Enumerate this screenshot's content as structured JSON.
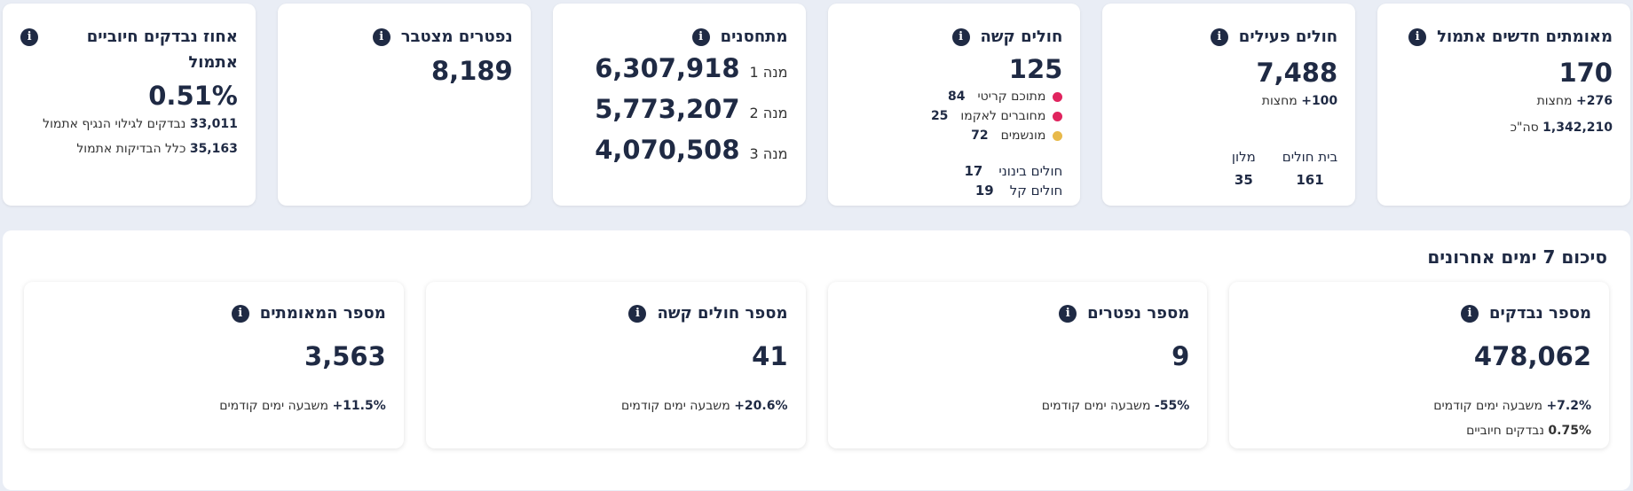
{
  "top_cards": {
    "confirmed": {
      "title": "מאומתים חדשים אתמול",
      "value": "170",
      "midnight_value": "276+",
      "midnight_label": "מחצות",
      "total_value": "1,342,210",
      "total_label": "סה\"כ"
    },
    "active": {
      "title": "חולים פעילים",
      "value": "7,488",
      "midnight_value": "100+",
      "midnight_label": "מחצות",
      "hospital_label": "בית חולים",
      "hospital_value": "161",
      "hotel_label": "מלון",
      "hotel_value": "35"
    },
    "severe": {
      "title": "חולים קשה",
      "value": "125",
      "critical_label": "מתוכם קריטי",
      "critical_value": "84",
      "ecmo_label": "מחוברים לאקמו",
      "ecmo_value": "25",
      "ventilated_label": "מונשמים",
      "ventilated_value": "72",
      "moderate_label": "חולים בינוני",
      "moderate_value": "17",
      "mild_label": "חולים קל",
      "mild_value": "19",
      "critical_color": "#e0245e",
      "ecmo_color": "#e0245e",
      "ventilated_color": "#e8b94a"
    },
    "vaccinated": {
      "title": "מתחסנים",
      "dose1_label": "מנה 1",
      "dose1_value": "6,307,918",
      "dose2_label": "מנה 2",
      "dose2_value": "5,773,207",
      "dose3_label": "מנה 3",
      "dose3_value": "4,070,508"
    },
    "deaths": {
      "title": "נפטרים מצטבר",
      "value": "8,189"
    },
    "positive_pct": {
      "title": "אחוז נבדקים חיוביים",
      "title_line2": "אתמול",
      "value": "0.51%",
      "tested_value": "33,011",
      "tested_label": "נבדקים לגילוי הנגיף אתמול",
      "all_value": "35,163",
      "all_label": "כלל הבדיקות אתמול"
    }
  },
  "summary": {
    "title": "סיכום 7 ימים אחרונים",
    "cards": [
      {
        "title": "מספר המאומתים",
        "value": "3,563",
        "change": "11.5%+",
        "change_label": "משבעה ימים קודמים"
      },
      {
        "title": "מספר חולים קשה",
        "value": "41",
        "change": "20.6%+",
        "change_label": "משבעה ימים קודמים"
      },
      {
        "title": "מספר נפטרים",
        "value": "9",
        "change": "55%-",
        "change_label": "משבעה ימים קודמים"
      },
      {
        "title": "מספר נבדקים",
        "value": "478,062",
        "change": "7.2%+",
        "change_label": "משבעה ימים קודמים",
        "extra_value": "0.75%",
        "extra_label": "נבדקים חיוביים"
      }
    ]
  },
  "icons": {
    "info": "info-icon"
  }
}
